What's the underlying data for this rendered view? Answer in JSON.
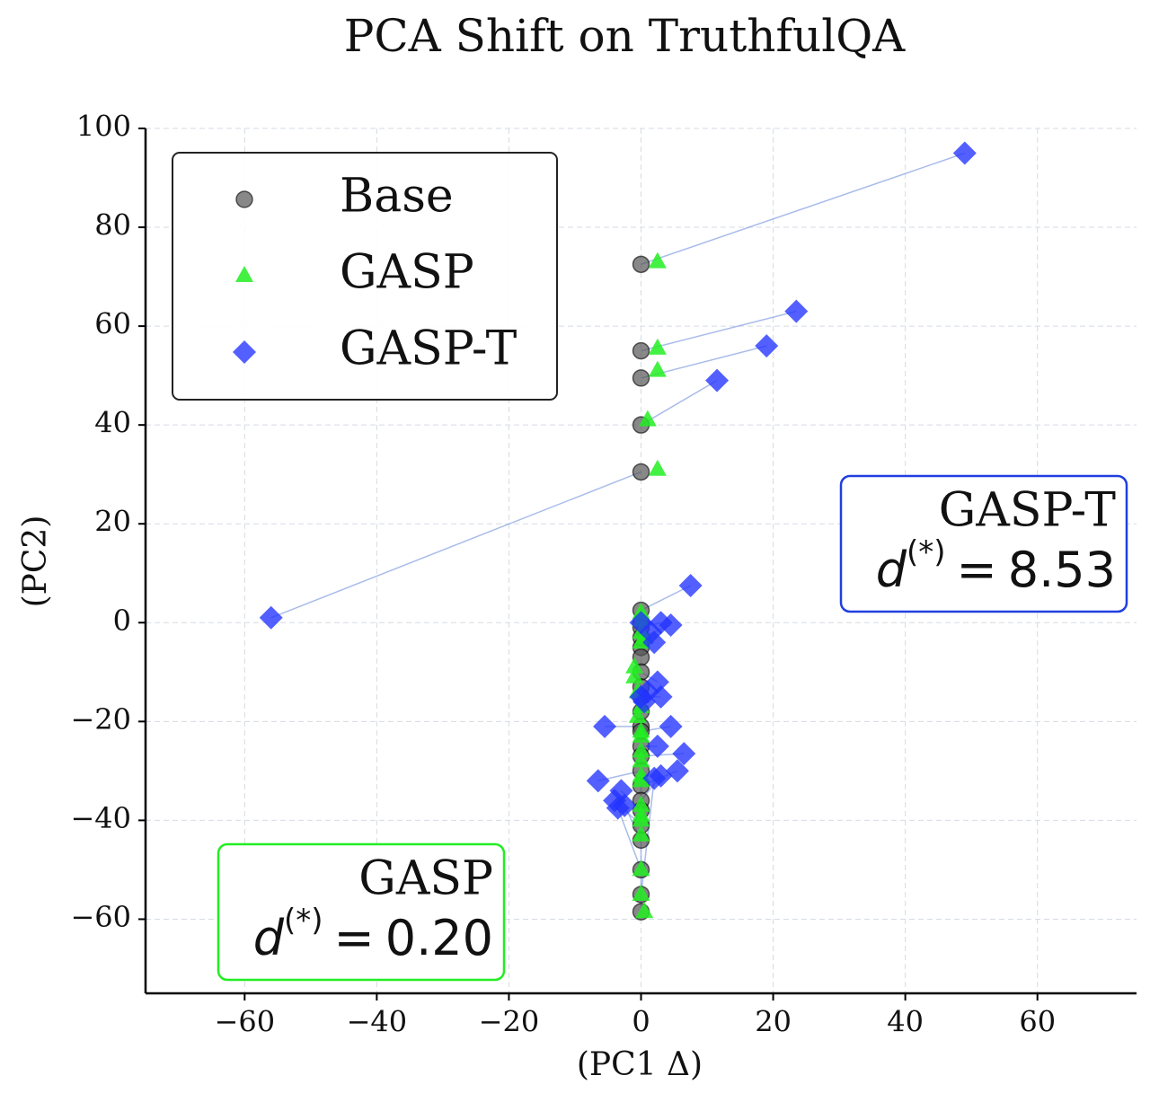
{
  "chart_data": {
    "type": "scatter",
    "title": "PCA Shift on TruthfulQA",
    "x_label": "(PC1 Δ)",
    "y_label": "(PC2)",
    "xlim": [
      -75,
      75
    ],
    "ylim": [
      -75,
      100
    ],
    "xticks": [
      {
        "value": -60,
        "label": "−60"
      },
      {
        "value": -40,
        "label": "−40"
      },
      {
        "value": -20,
        "label": "−20"
      },
      0,
      20,
      40,
      60
    ],
    "yticks": [
      {
        "value": -60,
        "label": "−60"
      },
      {
        "value": -40,
        "label": "−40"
      },
      {
        "value": -20,
        "label": "−20"
      },
      0,
      20,
      40,
      60,
      80,
      100
    ],
    "grid": true,
    "legend": "upper left",
    "connector_color": "#6f8fdc",
    "series": [
      {
        "name": "Base",
        "color": "#555555",
        "marker": "circle",
        "x": [
          0,
          0,
          0,
          0,
          0,
          0,
          0,
          0,
          0,
          0,
          0,
          0,
          0,
          0,
          0,
          0,
          0,
          0,
          0,
          0,
          0,
          0,
          0,
          0,
          0,
          0,
          0,
          0
        ],
        "y": [
          72.5,
          55,
          49.5,
          40,
          30.5,
          2.5,
          0,
          -1,
          -3,
          -5,
          -7,
          -10,
          -13,
          -15,
          -18,
          -21,
          -22,
          -25,
          -27,
          -30,
          -33,
          -36,
          -38,
          -41,
          -44,
          -50,
          -55,
          -58.5
        ]
      },
      {
        "name": "GASP",
        "color": "#22ee22",
        "marker": "triangle",
        "x": [
          2.5,
          2.5,
          2.5,
          1,
          2.5,
          0,
          0,
          0,
          0.5,
          0,
          -1,
          -1,
          -0.5,
          0,
          -0.5,
          0,
          0,
          0,
          0,
          0,
          0,
          0,
          0,
          0,
          0,
          0,
          0,
          0.5
        ],
        "y": [
          73,
          55.5,
          51,
          41,
          31,
          2,
          0.5,
          -2,
          -3,
          -4,
          -9,
          -11,
          -14,
          -17,
          -19,
          -22,
          -23,
          -26,
          -28,
          -31,
          -32,
          -37,
          -39,
          -40,
          -43,
          -50,
          -55,
          -58.5
        ]
      },
      {
        "name": "GASP-T",
        "color": "#2233ff",
        "marker": "diamond",
        "x": [
          49,
          23.5,
          19,
          11.5,
          -56,
          7.5,
          0,
          3,
          4.5,
          2,
          1.5,
          2.5,
          1,
          3,
          0.5,
          -5.5,
          4.5,
          2.5,
          6.5,
          -6.5,
          5.5,
          3,
          -3,
          -4,
          -2.5,
          -3.5,
          2,
          0
        ],
        "y": [
          95,
          63,
          56,
          49,
          1,
          7.5,
          0,
          0,
          -0.5,
          -4,
          -2,
          -12,
          -14,
          -15,
          -16,
          -21,
          -21,
          -25,
          -26.5,
          -32,
          -30,
          -31,
          -34,
          -36,
          -37,
          -37.5,
          -31.5,
          -15
        ]
      }
    ],
    "annotations": [
      {
        "text": "GASP-T",
        "symbol": "d",
        "superscript": "(*)",
        "relation": "=",
        "value": 8.53,
        "value_label": "8.53",
        "color": "#1f3fe0"
      },
      {
        "text": "GASP",
        "symbol": "d",
        "superscript": "(*)",
        "relation": "=",
        "value": 0.2,
        "value_label": "0.20",
        "color": "#22ee22"
      }
    ]
  }
}
